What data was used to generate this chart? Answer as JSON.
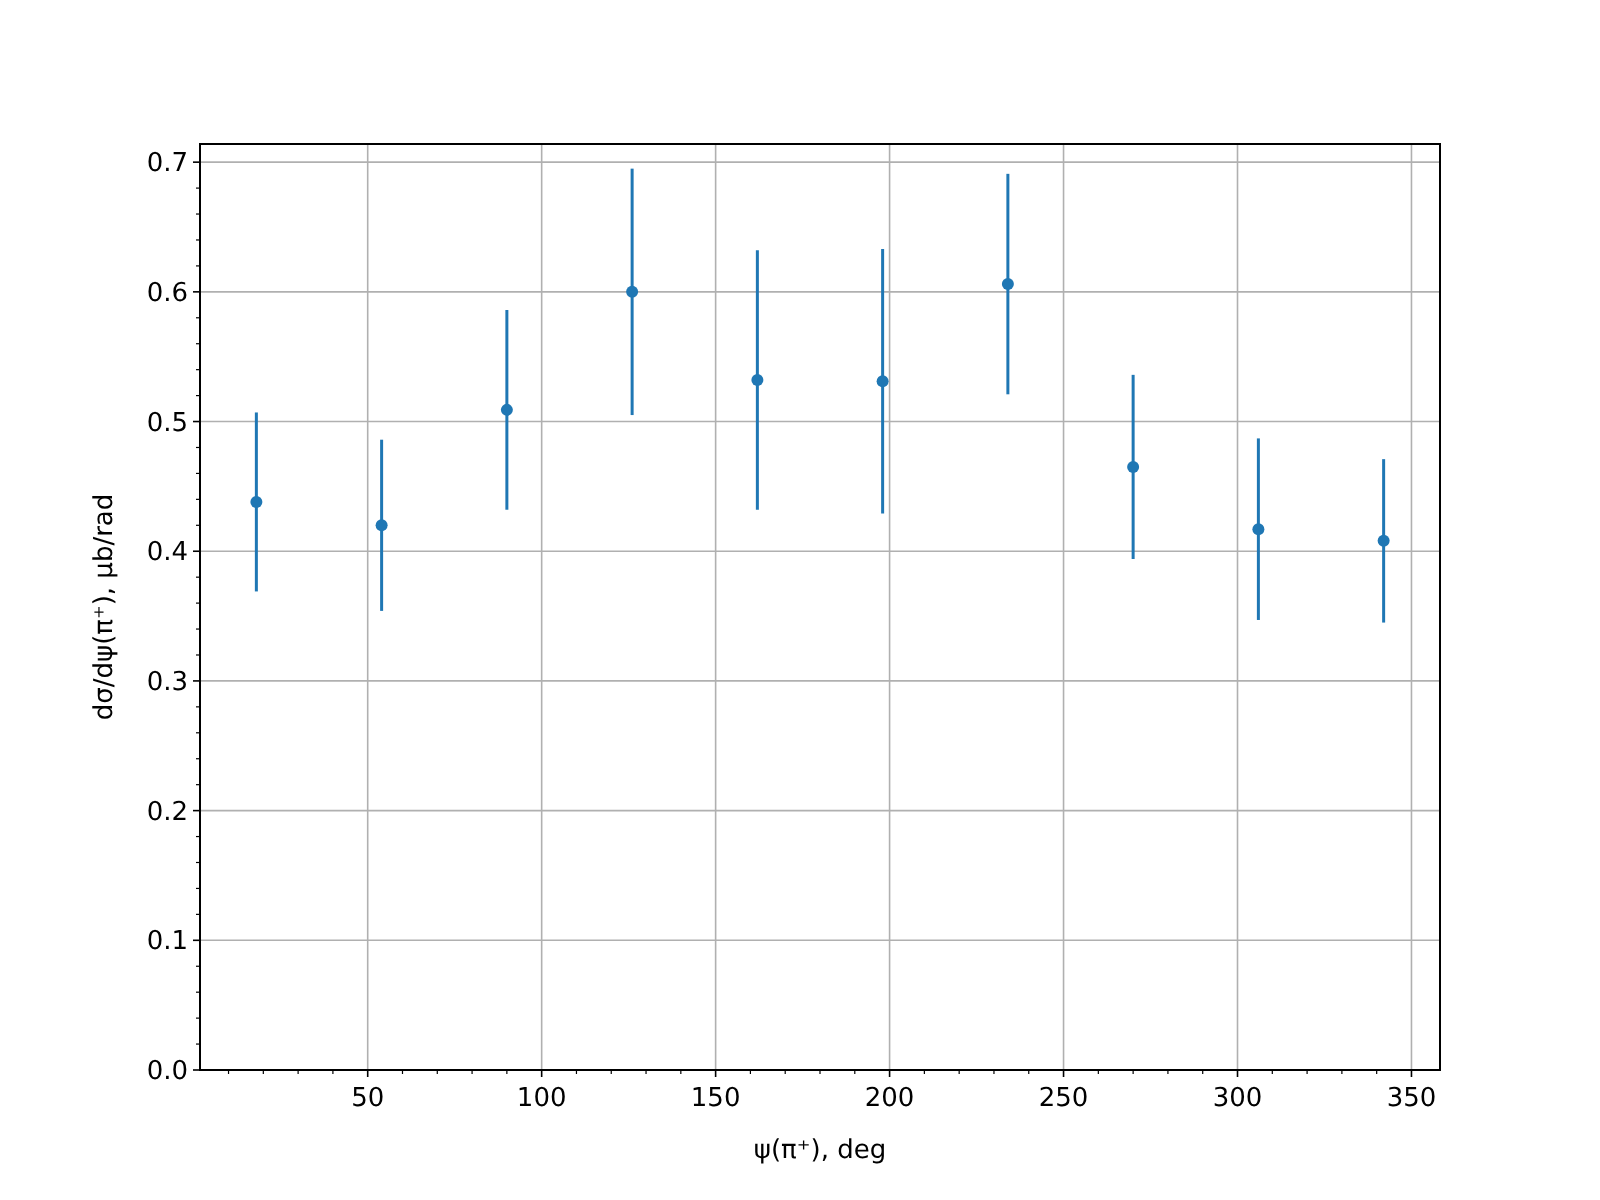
{
  "chart_data": {
    "type": "scatter",
    "xlabel": "ψ(π⁺), deg",
    "ylabel": "dσ/dψ(π⁺), μb/rad",
    "x": [
      18,
      54,
      90,
      126,
      162,
      198,
      234,
      270,
      306,
      342
    ],
    "series": [
      {
        "color": "#1f77b4",
        "values": [
          0.438,
          0.42,
          0.509,
          0.6,
          0.532,
          0.531,
          0.606,
          0.465,
          0.417,
          0.408
        ],
        "errors": [
          0.069,
          0.066,
          0.077,
          0.095,
          0.1,
          0.102,
          0.085,
          0.071,
          0.07,
          0.063
        ]
      }
    ],
    "xlim": [
      1.8,
      358.2
    ],
    "ylim": [
      0,
      0.714
    ],
    "xticks": [
      {
        "value": 10,
        "label": null
      },
      {
        "value": 20,
        "label": null
      },
      {
        "value": 30,
        "label": null
      },
      {
        "value": 40,
        "label": null
      },
      50,
      {
        "value": 60,
        "label": null
      },
      {
        "value": 70,
        "label": null
      },
      {
        "value": 80,
        "label": null
      },
      {
        "value": 90,
        "label": null
      },
      100,
      {
        "value": 110,
        "label": null
      },
      {
        "value": 120,
        "label": null
      },
      {
        "value": 130,
        "label": null
      },
      {
        "value": 140,
        "label": null
      },
      150,
      {
        "value": 160,
        "label": null
      },
      {
        "value": 170,
        "label": null
      },
      {
        "value": 180,
        "label": null
      },
      {
        "value": 190,
        "label": null
      },
      200,
      {
        "value": 210,
        "label": null
      },
      {
        "value": 220,
        "label": null
      },
      {
        "value": 230,
        "label": null
      },
      {
        "value": 240,
        "label": null
      },
      250,
      {
        "value": 260,
        "label": null
      },
      {
        "value": 270,
        "label": null
      },
      {
        "value": 280,
        "label": null
      },
      {
        "value": 290,
        "label": null
      },
      300,
      {
        "value": 310,
        "label": null
      },
      {
        "value": 320,
        "label": null
      },
      {
        "value": 330,
        "label": null
      },
      {
        "value": 340,
        "label": null
      },
      350
    ],
    "yticks": [
      {
        "value": 0,
        "label": "0.0"
      },
      {
        "value": 0.02,
        "label": null
      },
      {
        "value": 0.04,
        "label": null
      },
      {
        "value": 0.06,
        "label": null
      },
      {
        "value": 0.08,
        "label": null
      },
      0.1,
      {
        "value": 0.12,
        "label": null
      },
      {
        "value": 0.14,
        "label": null
      },
      {
        "value": 0.16,
        "label": null
      },
      {
        "value": 0.18,
        "label": null
      },
      0.2,
      {
        "value": 0.22,
        "label": null
      },
      {
        "value": 0.24,
        "label": null
      },
      {
        "value": 0.26,
        "label": null
      },
      {
        "value": 0.28,
        "label": null
      },
      0.3,
      {
        "value": 0.32,
        "label": null
      },
      {
        "value": 0.34,
        "label": null
      },
      {
        "value": 0.36,
        "label": null
      },
      {
        "value": 0.38,
        "label": null
      },
      0.4,
      {
        "value": 0.42,
        "label": null
      },
      {
        "value": 0.44,
        "label": null
      },
      {
        "value": 0.46,
        "label": null
      },
      {
        "value": 0.48,
        "label": null
      },
      0.5,
      {
        "value": 0.52,
        "label": null
      },
      {
        "value": 0.54,
        "label": null
      },
      {
        "value": 0.56,
        "label": null
      },
      {
        "value": 0.58,
        "label": null
      },
      0.6,
      {
        "value": 0.62,
        "label": null
      },
      {
        "value": 0.64,
        "label": null
      },
      {
        "value": 0.66,
        "label": null
      },
      {
        "value": 0.68,
        "label": null
      },
      0.7
    ],
    "grid": true,
    "marker": "circle",
    "line_style": "none"
  }
}
